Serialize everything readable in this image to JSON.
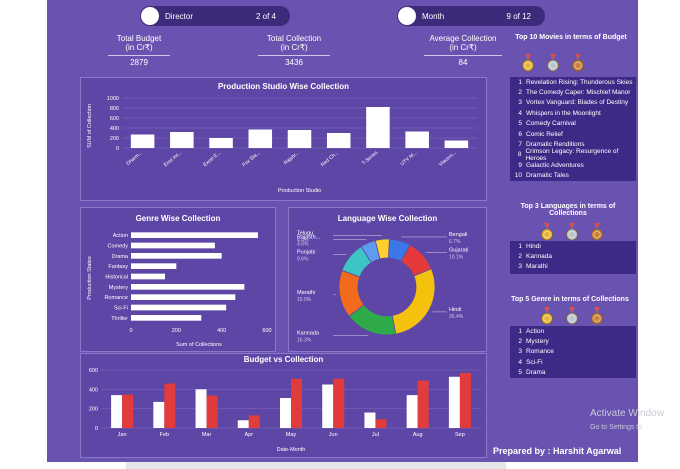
{
  "slicers": [
    {
      "label": "Director",
      "count": "2 of 4"
    },
    {
      "label": "Month",
      "count": "9 of 12"
    }
  ],
  "kpis": [
    {
      "title": "Total Budget",
      "unit": "(in Cr₹)",
      "value": "2879"
    },
    {
      "title": "Total Collection",
      "unit": "(in Cr₹)",
      "value": "3436"
    },
    {
      "title": "Average Collection",
      "unit": "(in Cr₹)",
      "value": "84"
    }
  ],
  "top_movies": {
    "title": "Top 10 Movies in terms of Budget",
    "items": [
      "Revelation Rising: Thunderous Skies",
      "The Comedy Caper: Mischief Manor",
      "Vortex Vanguard: Blades of Destiny",
      "Whispers in the Moonlight",
      "Comedy Carnival",
      "Comic Relief",
      "Dramatic Renditions",
      "Crimson Legacy: Resurgence of Heroes",
      "Galactic Adventures",
      "Dramatic Tales"
    ]
  },
  "top_languages": {
    "title": "Top 3 Languages in terms of Collections",
    "items": [
      "Hindi",
      "Kannada",
      "Marathi"
    ]
  },
  "top_genres": {
    "title": "Top 5 Genre in terms of Collections",
    "items": [
      "Action",
      "Mystery",
      "Romance",
      "Sci-Fi",
      "Drama"
    ]
  },
  "medal_colors": [
    "#e5b53a",
    "#b9c3cc",
    "#c8803e"
  ],
  "footer": "Prepared by : Harshit Agarwal",
  "watermark": {
    "line1": "Activate Window",
    "line2": "Go to Settings to"
  },
  "colors": {
    "board": "#6a52b0",
    "bar_white": "#ffffff",
    "bar_red": "#e23b3b"
  },
  "chart_data": [
    {
      "type": "bar",
      "title": "Production Studio Wise Collection",
      "xlabel": "Production Studio",
      "ylabel": "SUM of Collection",
      "ylim": [
        0,
        1000
      ],
      "yticks": [
        "0",
        "200",
        "400",
        "600",
        "800",
        "1000"
      ],
      "categories": [
        "Dharm...",
        "Eros Int...",
        "Excel E...",
        "Fox Sta...",
        "Rajshr...",
        "Red Ch...",
        "T-Series",
        "UTV M...",
        "Viacom..."
      ],
      "values": [
        270,
        320,
        200,
        370,
        360,
        300,
        820,
        330,
        150
      ]
    },
    {
      "type": "bar",
      "orientation": "horizontal",
      "title": "Genre Wise Collection",
      "xlabel": "Sum of Collections",
      "ylabel": "Production States",
      "xlim": [
        0,
        600
      ],
      "xticks": [
        "0",
        "200",
        "400",
        "600"
      ],
      "categories": [
        "Action",
        "Comedy",
        "Drama",
        "Fantasy",
        "Historical",
        "Mystery",
        "Romance",
        "Sci-Fi",
        "Thriller"
      ],
      "values": [
        560,
        370,
        400,
        200,
        150,
        500,
        460,
        420,
        310
      ]
    },
    {
      "type": "pie",
      "donut": true,
      "title": "Language Wise Collection",
      "slices": [
        {
          "label": "Bengali",
          "pct": "6.7%",
          "value": 6.7,
          "color": "#3a78e6"
        },
        {
          "label": "Gujarati",
          "pct": "10.1%",
          "value": 10.1,
          "color": "#e63a3a"
        },
        {
          "label": "Hindi",
          "pct": "26.4%",
          "value": 26.4,
          "color": "#f4c20d"
        },
        {
          "label": "Kannada",
          "pct": "16.3%",
          "value": 16.3,
          "color": "#2faa4a"
        },
        {
          "label": "Marathi",
          "pct": "15.0%",
          "value": 15.0,
          "color": "#f26b1d"
        },
        {
          "label": "Punjabi",
          "pct": "9.6%",
          "value": 9.6,
          "color": "#3dc4c4"
        },
        {
          "label": "Rajasth...",
          "pct": "4.8%",
          "value": 4.8,
          "color": "#5f9cf0"
        },
        {
          "label": "Telugu",
          "pct": "4.4%",
          "value": 4.4,
          "color": "#ffcf2e"
        }
      ]
    },
    {
      "type": "bar",
      "title": "Budget vs Collection",
      "xlabel": "Date-Month",
      "ylim": [
        0,
        600
      ],
      "yticks": [
        "0",
        "200",
        "400",
        "600"
      ],
      "categories": [
        "Jan",
        "Feb",
        "Mar",
        "Apr",
        "May",
        "Jun",
        "Jul",
        "Aug",
        "Sep"
      ],
      "series": [
        {
          "values": [
            340,
            270,
            400,
            80,
            310,
            450,
            160,
            340,
            530
          ],
          "color": "#ffffff"
        },
        {
          "values": [
            345,
            460,
            335,
            130,
            510,
            510,
            90,
            490,
            570
          ],
          "color": "#e23b3b"
        }
      ]
    }
  ]
}
